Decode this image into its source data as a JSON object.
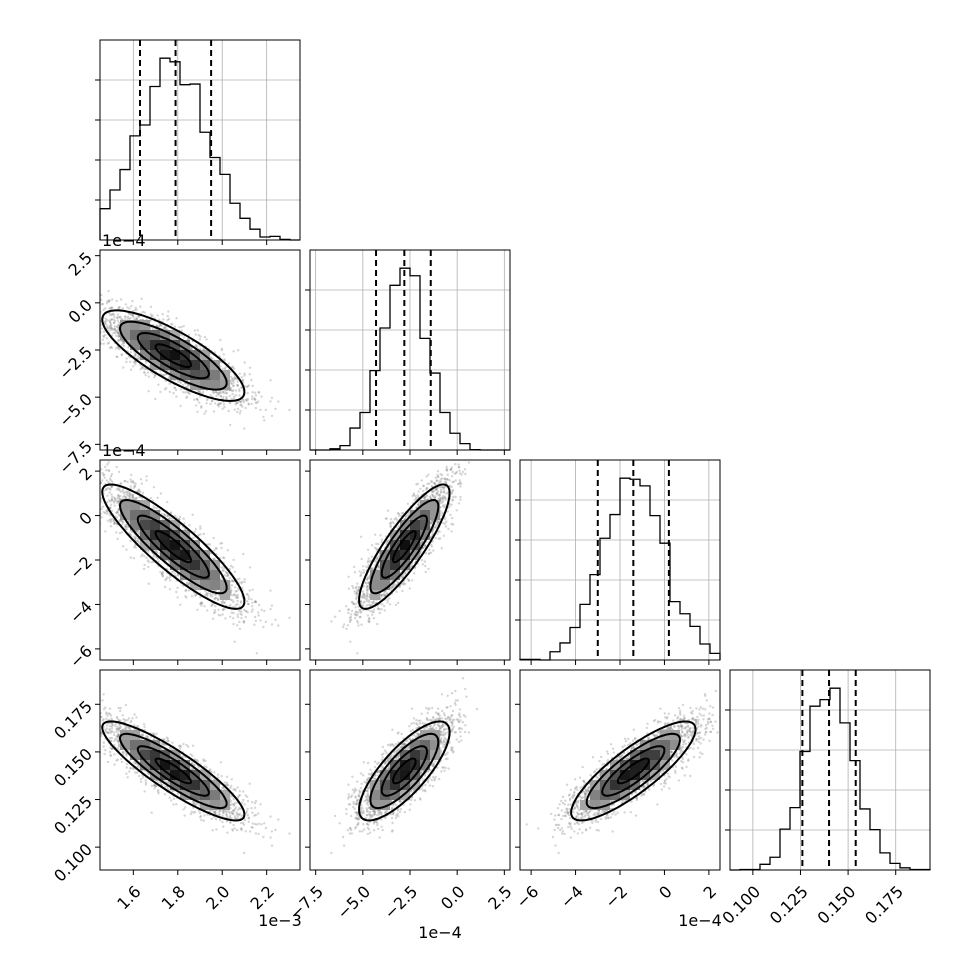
{
  "chart_data": {
    "type": "corner",
    "parameters": [
      {
        "id": "p1",
        "range": [
          0.00145,
          0.00235
        ],
        "ticks": [
          0.0016,
          0.0018,
          0.002,
          0.0022
        ],
        "tick_labels": [
          "1.6",
          "1.8",
          "2.0",
          "2.2"
        ],
        "offset_label": "1e−3",
        "mean": 0.00178,
        "sd": 0.00016,
        "quantiles": [
          0.00163,
          0.00179,
          0.00195
        ]
      },
      {
        "id": "p2",
        "range": [
          -0.00078,
          0.00028
        ],
        "ticks": [
          -0.00075,
          -0.0005,
          -0.00025,
          0.0,
          0.00025
        ],
        "tick_labels": [
          "−7.5",
          "−5.0",
          "−2.5",
          "0.0",
          "2.5"
        ],
        "offset_label": "1e−4",
        "mean": -0.00028,
        "sd": 0.00012,
        "quantiles": [
          -0.00043,
          -0.00028,
          -0.00014
        ]
      },
      {
        "id": "p3",
        "range": [
          -0.00065,
          0.00025
        ],
        "ticks": [
          -0.0006,
          -0.0004,
          -0.0002,
          0.0,
          0.0002
        ],
        "tick_labels": [
          "−6",
          "−4",
          "−2",
          "0",
          "2"
        ],
        "offset_label": "1e−4",
        "mean": -0.00014,
        "sd": 0.00014,
        "quantiles": [
          -0.0003,
          -0.00014,
          2e-05
        ]
      },
      {
        "id": "p4",
        "range": [
          0.088,
          0.193
        ],
        "ticks": [
          0.1,
          0.125,
          0.15,
          0.175
        ],
        "tick_labels": [
          "0.100",
          "0.125",
          "0.150",
          "0.175"
        ],
        "offset_label": "",
        "mean": 0.14,
        "sd": 0.013,
        "quantiles": [
          0.126,
          0.14,
          0.154
        ]
      }
    ],
    "correlations": [
      [
        1,
        -0.8,
        -0.88,
        -0.88
      ],
      [
        -0.8,
        1,
        0.86,
        0.78
      ],
      [
        -0.88,
        0.86,
        1,
        0.84
      ],
      [
        -0.88,
        0.78,
        0.84,
        1
      ]
    ],
    "contour_levels": [
      0.5,
      1.0,
      1.5,
      2.0
    ],
    "histogram_bins": 20
  }
}
